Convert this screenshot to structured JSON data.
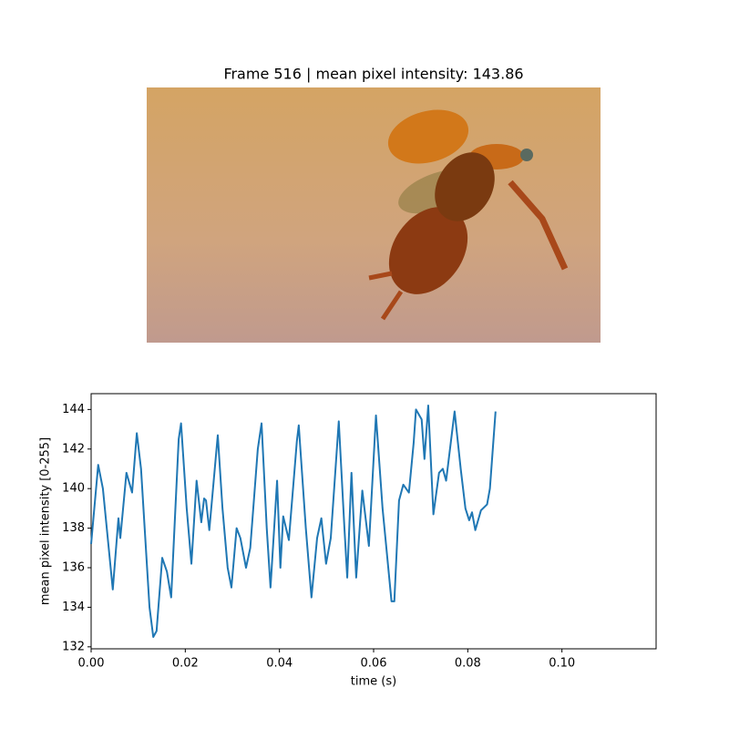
{
  "image": {
    "title": "Frame 516 | mean pixel intensity: 143.86"
  },
  "chart_data": {
    "type": "line",
    "xlabel": "time (s)",
    "ylabel": "mean pixel intensity [0-255]",
    "xlim": [
      0,
      0.12
    ],
    "ylim": [
      131.9,
      144.8
    ],
    "xticks": [
      {
        "value": 0,
        "label": "0.00"
      },
      {
        "value": 0.02,
        "label": "0.02"
      },
      {
        "value": 0.04,
        "label": "0.04"
      },
      {
        "value": 0.06,
        "label": "0.06"
      },
      {
        "value": 0.08,
        "label": "0.08"
      },
      {
        "value": 0.1,
        "label": "0.10"
      }
    ],
    "yticks": [
      132,
      134,
      136,
      138,
      140,
      142,
      144
    ],
    "color": "#1f77b4",
    "x": [
      0,
      0.0015,
      0.0025,
      0.0046,
      0.0058,
      0.0062,
      0.0075,
      0.0087,
      0.0097,
      0.0106,
      0.0124,
      0.0132,
      0.0139,
      0.0151,
      0.0161,
      0.017,
      0.0186,
      0.0191,
      0.0203,
      0.0213,
      0.0224,
      0.0234,
      0.024,
      0.0244,
      0.0251,
      0.0269,
      0.0279,
      0.029,
      0.0298,
      0.0309,
      0.0317,
      0.0329,
      0.0338,
      0.0354,
      0.0362,
      0.0373,
      0.0381,
      0.0395,
      0.0402,
      0.0408,
      0.042,
      0.0437,
      0.0441,
      0.0456,
      0.0468,
      0.048,
      0.0489,
      0.0499,
      0.0509,
      0.0526,
      0.0538,
      0.0544,
      0.0553,
      0.0563,
      0.0576,
      0.059,
      0.0605,
      0.0619,
      0.0638,
      0.0644,
      0.0654,
      0.0663,
      0.0675,
      0.0685,
      0.069,
      0.0702,
      0.0708,
      0.0716,
      0.0727,
      0.0739,
      0.0747,
      0.0754,
      0.0772,
      0.0785,
      0.0795,
      0.0803,
      0.0809,
      0.0816,
      0.0828,
      0.0841,
      0.0847,
      0.0859
    ],
    "values": [
      137.2,
      141.2,
      140,
      134.9,
      138.5,
      137.5,
      140.8,
      139.8,
      142.8,
      141,
      134,
      132.5,
      132.8,
      136.5,
      135.8,
      134.5,
      142.5,
      143.3,
      139,
      136.2,
      140.4,
      138.3,
      139.5,
      139.4,
      137.9,
      142.7,
      139,
      136,
      135,
      138,
      137.5,
      136,
      137,
      142,
      143.3,
      138,
      135,
      140.4,
      136,
      138.6,
      137.4,
      142.4,
      143.2,
      138,
      134.5,
      137.5,
      138.5,
      136.2,
      137.5,
      143.4,
      138,
      135.5,
      140.8,
      135.5,
      139.9,
      137.1,
      143.7,
      139,
      134.3,
      134.3,
      139.4,
      140.2,
      139.8,
      142.3,
      144,
      143.5,
      141.5,
      144.2,
      138.7,
      140.8,
      141,
      140.4,
      143.9,
      141,
      139,
      138.4,
      138.8,
      137.9,
      138.9,
      139.2,
      140,
      143.9
    ]
  }
}
